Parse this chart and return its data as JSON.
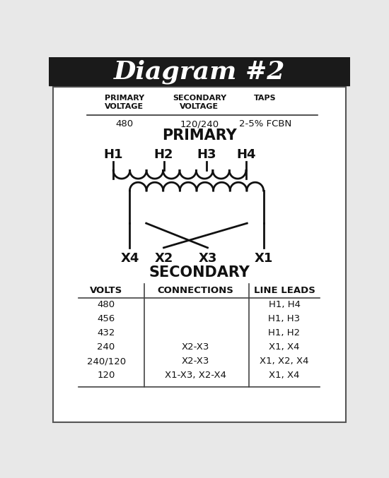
{
  "title": "Diagram #2",
  "title_bg": "#1a1a1a",
  "title_color": "#ffffff",
  "bg_color": "#e8e8e8",
  "inner_bg": "#ffffff",
  "primary_voltage": "480",
  "secondary_voltage": "120/240",
  "taps": "2-5% FCBN",
  "primary_label": "PRIMARY",
  "secondary_label": "SECONDARY",
  "h_labels": [
    "H1",
    "H2",
    "H3",
    "H4"
  ],
  "x_labels": [
    "X4",
    "X2",
    "X3",
    "X1"
  ],
  "top_headers": [
    "PRIMARY\nVOLTAGE",
    "SECONDARY\nVOLTAGE",
    "TAPS"
  ],
  "table_headers": [
    "VOLTS",
    "CONNECTIONS",
    "LINE LEADS"
  ],
  "table_rows": [
    [
      "480",
      "",
      "H1, H4"
    ],
    [
      "456",
      "",
      "H1, H3"
    ],
    [
      "432",
      "",
      "H1, H2"
    ],
    [
      "240",
      "X2-X3",
      "X1, X4"
    ],
    [
      "240/120",
      "X2-X3",
      "X1, X2, X4"
    ],
    [
      "120",
      "X1-X3, X2-X4",
      "X1, X4"
    ]
  ]
}
